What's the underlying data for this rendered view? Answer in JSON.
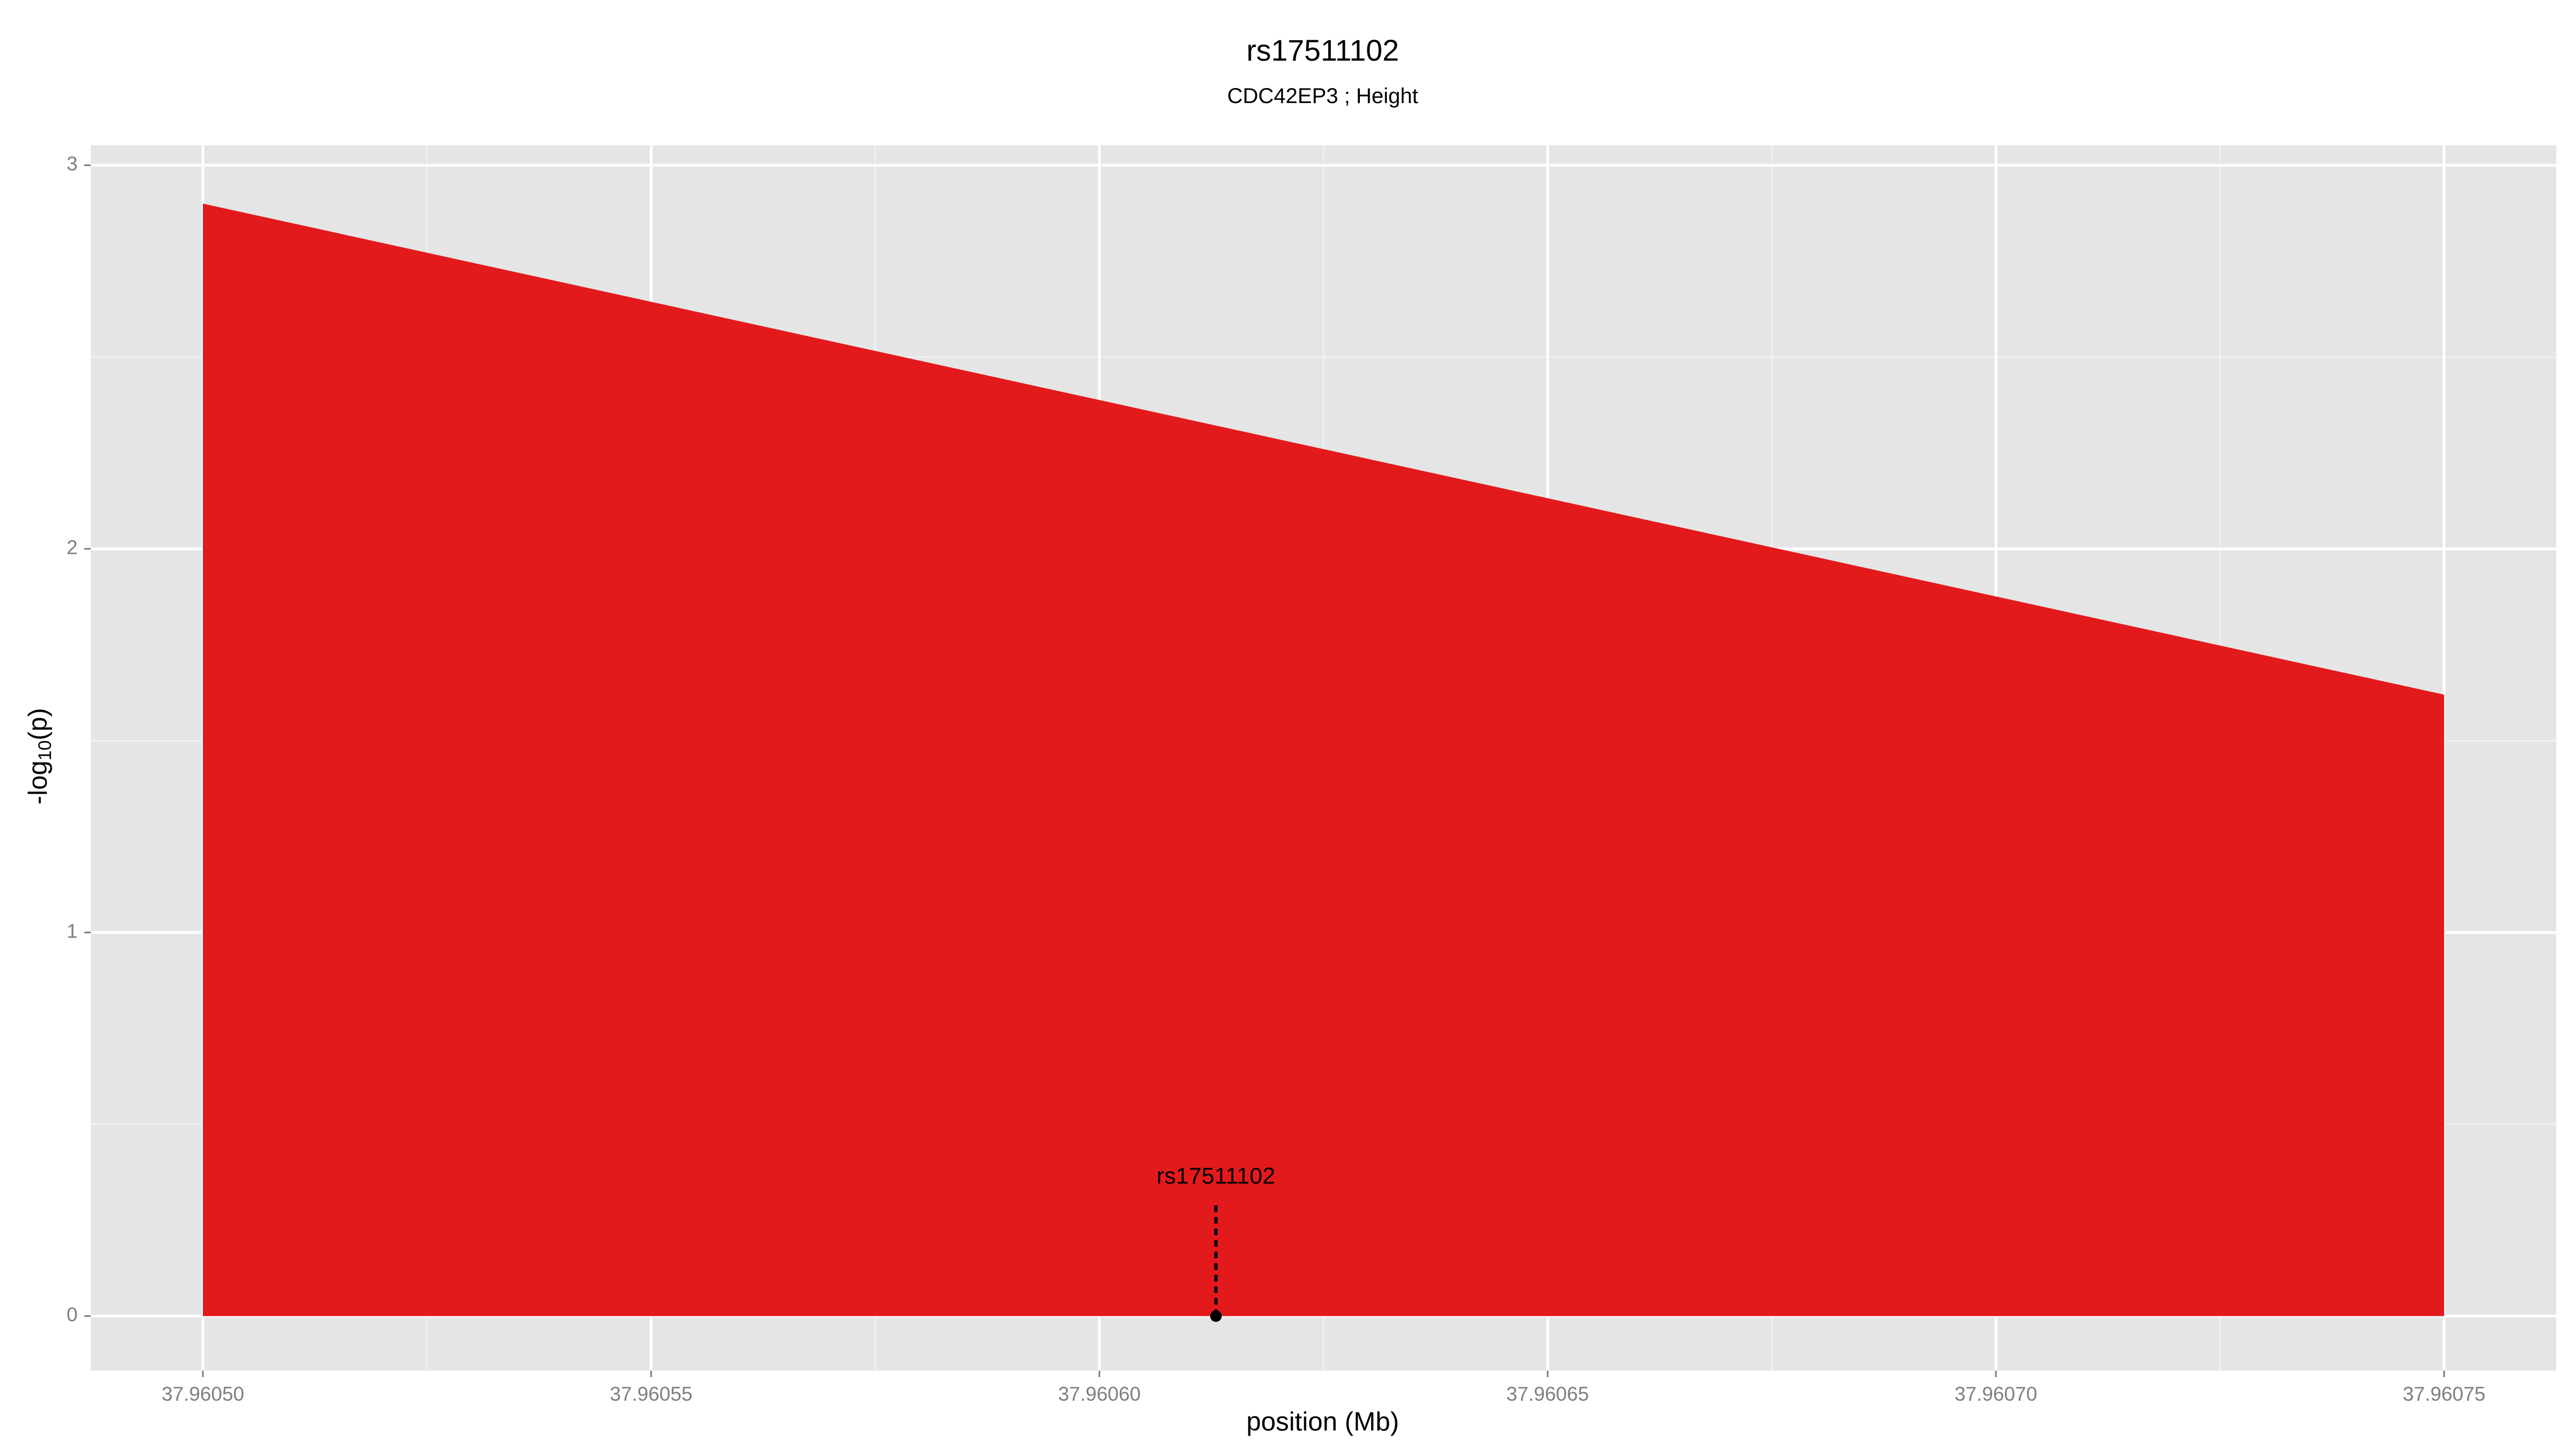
{
  "chart_data": {
    "type": "area",
    "title": "rs17511102",
    "subtitle": "CDC42EP3 ; Height",
    "x_label": "position (Mb)",
    "y_label": {
      "prefix": "-log",
      "subscript": "10",
      "suffix": "(p)"
    },
    "series": [
      {
        "color": "#e31a1c",
        "x": [
          37.9605,
          37.96075
        ],
        "values": [
          2.9,
          1.62
        ]
      }
    ],
    "annotation": {
      "label": "rs17511102",
      "x": 37.960613,
      "y": 0
    },
    "xlim": [
      37.9604875,
      37.9607625
    ],
    "ylim": [
      -0.142,
      3.052
    ],
    "xticks": [
      {
        "value": 37.9605,
        "label": "37.96050"
      },
      {
        "value": 37.96055,
        "label": "37.96055"
      },
      {
        "value": 37.9606,
        "label": "37.96060"
      },
      {
        "value": 37.96065,
        "label": "37.96065"
      },
      {
        "value": 37.9607,
        "label": "37.96070"
      },
      {
        "value": 37.96075,
        "label": "37.96075"
      }
    ],
    "yticks": [
      0,
      1,
      2,
      3
    ],
    "grid": true,
    "minor_grid": true,
    "background": "#e5e5e5"
  }
}
